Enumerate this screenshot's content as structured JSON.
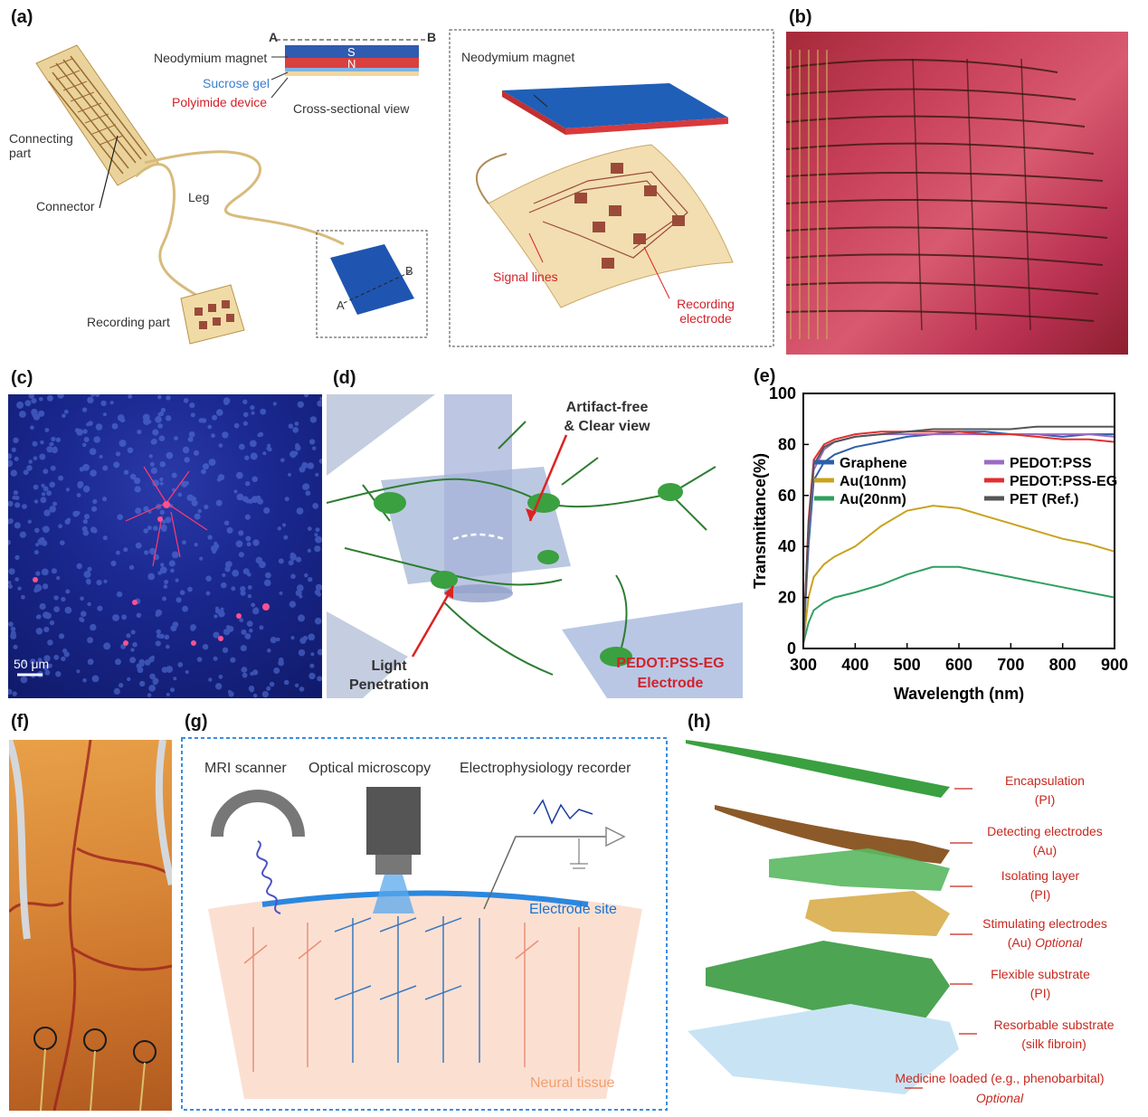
{
  "panel_labels": [
    "(a)",
    "(b)",
    "(c)",
    "(d)",
    "(e)",
    "(f)",
    "(g)",
    "(h)"
  ],
  "panel_a": {
    "section_a": "A",
    "section_b": "B",
    "neodymium_magnet": "Neodymium magnet",
    "pole_s": "S",
    "pole_n": "N",
    "sucrose_gel": "Sucrose gel",
    "polyimide_device": "Polyimide device",
    "cross_section": "Cross-sectional view",
    "connecting_part": "Connecting part",
    "connector": "Connector",
    "leg": "Leg",
    "recording_part": "Recording part",
    "inset_a": "A",
    "inset_b": "B",
    "zoom_magnet": "Neodymium magnet",
    "signal_lines": "Signal lines",
    "recording_electrode": "Recording electrode"
  },
  "panel_c": {
    "scale_bar": "50 μm"
  },
  "panel_d": {
    "artifact_free": "Artifact-free",
    "clear_view": "& Clear view",
    "light_1": "Light",
    "light_2": "Penetration",
    "electrode_1": "PEDOT:PSS-EG",
    "electrode_2": "Electrode"
  },
  "chart_data": {
    "type": "line",
    "title": "",
    "xlabel": "Wavelength (nm)",
    "ylabel": "Transmittance(%)",
    "xlim": [
      300,
      900
    ],
    "ylim": [
      0,
      100
    ],
    "x_ticks": [
      300,
      400,
      500,
      600,
      700,
      800,
      900
    ],
    "y_ticks": [
      0,
      20,
      40,
      60,
      80,
      100
    ],
    "legend": "inside-center",
    "grid": false,
    "series": [
      {
        "name": "Graphene",
        "color": "#2e5fa8",
        "x": [
          300,
          310,
          320,
          340,
          360,
          400,
          450,
          500,
          550,
          600,
          650,
          700,
          750,
          800,
          850,
          900
        ],
        "y": [
          2,
          40,
          66,
          73,
          76,
          79,
          81,
          83,
          84,
          85,
          85,
          84,
          84,
          83,
          84,
          84
        ]
      },
      {
        "name": "Au(10nm)",
        "color": "#c9a21e",
        "x": [
          300,
          310,
          320,
          340,
          360,
          400,
          450,
          500,
          550,
          600,
          650,
          700,
          750,
          800,
          850,
          900
        ],
        "y": [
          2,
          20,
          28,
          33,
          36,
          40,
          48,
          54,
          56,
          55,
          52,
          49,
          46,
          43,
          41,
          38
        ]
      },
      {
        "name": "Au(20nm)",
        "color": "#2ea060",
        "x": [
          300,
          310,
          320,
          340,
          360,
          400,
          450,
          500,
          550,
          600,
          650,
          700,
          750,
          800,
          850,
          900
        ],
        "y": [
          2,
          10,
          15,
          18,
          20,
          22,
          25,
          29,
          32,
          32,
          30,
          28,
          26,
          24,
          22,
          20
        ]
      },
      {
        "name": "PEDOT:PSS",
        "color": "#9b6bc4",
        "x": [
          300,
          310,
          320,
          340,
          360,
          400,
          450,
          500,
          550,
          600,
          650,
          700,
          750,
          800,
          850,
          900
        ],
        "y": [
          2,
          45,
          70,
          78,
          81,
          83,
          84,
          84,
          84,
          84,
          84,
          84,
          84,
          84,
          84,
          83
        ]
      },
      {
        "name": "PEDOT:PSS-EG",
        "color": "#e03030",
        "x": [
          300,
          310,
          320,
          340,
          360,
          400,
          450,
          500,
          550,
          600,
          650,
          700,
          750,
          800,
          850,
          900
        ],
        "y": [
          2,
          50,
          74,
          80,
          82,
          84,
          85,
          85,
          85,
          85,
          84,
          84,
          83,
          82,
          82,
          81
        ]
      },
      {
        "name": "PET (Ref.)",
        "color": "#555555",
        "x": [
          300,
          310,
          320,
          340,
          360,
          400,
          450,
          500,
          550,
          600,
          650,
          700,
          750,
          800,
          850,
          900
        ],
        "y": [
          2,
          48,
          72,
          79,
          81,
          83,
          84,
          85,
          86,
          86,
          86,
          86,
          87,
          87,
          87,
          87
        ]
      }
    ]
  },
  "panel_g": {
    "mri": "MRI scanner",
    "optical": "Optical microscopy",
    "ephys": "Electrophysiology recorder",
    "electrode_site": "Electrode site",
    "neural_tissue": "Neural tissue"
  },
  "panel_h": {
    "encapsulation_1": "Encapsulation",
    "encapsulation_2": "(PI)",
    "detecting_1": "Detecting electrodes",
    "detecting_2": "(Au)",
    "isolating_1": "Isolating layer",
    "isolating_2": "(PI)",
    "stimulating_1": "Stimulating electrodes",
    "stimulating_2a": "(Au)",
    "stimulating_2b": "Optional",
    "flexible_1": "Flexible substrate",
    "flexible_2": "(PI)",
    "resorbable_1": "Resorbable substrate",
    "resorbable_2": "(silk fibroin)",
    "medicine_1": "Medicine loaded (e.g., phenobarbital)",
    "medicine_2": "Optional"
  }
}
